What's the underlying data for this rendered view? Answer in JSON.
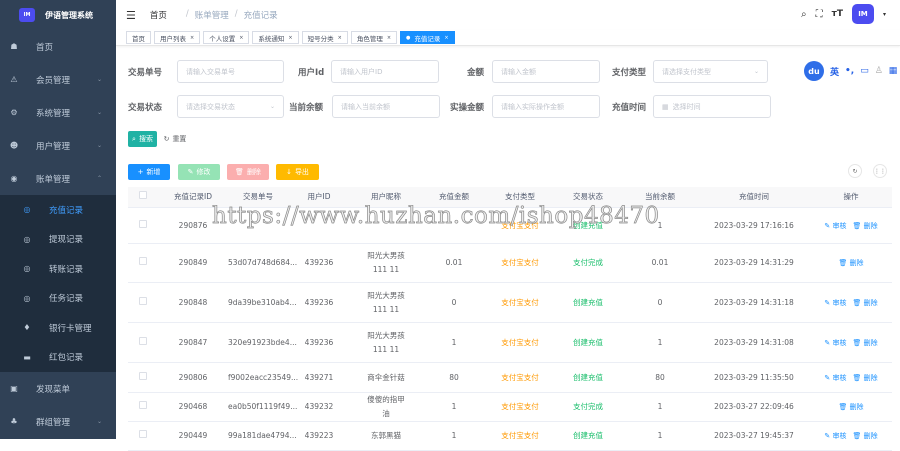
{
  "app": {
    "title": "伊语管理系统",
    "logo_text": "IM"
  },
  "sidebar": {
    "items": [
      {
        "label": "首页",
        "icon": "dashboard-icon"
      },
      {
        "label": "会员管理",
        "icon": "warning-icon"
      },
      {
        "label": "系统管理",
        "icon": "gear-icon"
      },
      {
        "label": "用户管理",
        "icon": "user-icon"
      },
      {
        "label": "账单管理",
        "icon": "bill-icon"
      }
    ],
    "sub_items": [
      {
        "label": "充值记录",
        "icon": "circle-icon",
        "active": true
      },
      {
        "label": "提现记录",
        "icon": "circle-icon"
      },
      {
        "label": "转账记录",
        "icon": "circle-icon"
      },
      {
        "label": "任务记录",
        "icon": "circle-icon"
      },
      {
        "label": "银行卡管理",
        "icon": "diamond-icon"
      },
      {
        "label": "红包记录",
        "icon": "envelope-icon"
      }
    ],
    "bottom_items": [
      {
        "label": "发现菜单",
        "icon": "grid-icon"
      },
      {
        "label": "群组管理",
        "icon": "group-icon"
      }
    ]
  },
  "header": {
    "breadcrumb": [
      "首页",
      "账单管理",
      "充值记录"
    ],
    "separator": "/",
    "avatar_text": "IM"
  },
  "tags": [
    {
      "label": "首页"
    },
    {
      "label": "用户列表"
    },
    {
      "label": "个人设置"
    },
    {
      "label": "系统通知"
    },
    {
      "label": "短号分类"
    },
    {
      "label": "角色管理"
    },
    {
      "label": "充值记录",
      "active": true
    }
  ],
  "filters": {
    "trade_no": {
      "label": "交易单号",
      "placeholder": "请输入交易单号"
    },
    "user_id": {
      "label": "用户Id",
      "placeholder": "请输入用户ID"
    },
    "amount": {
      "label": "金额",
      "placeholder": "请输入金额"
    },
    "pay_type": {
      "label": "支付类型",
      "placeholder": "请选择支付类型"
    },
    "trade_status": {
      "label": "交易状态",
      "placeholder": "请选择交易状态"
    },
    "balance": {
      "label": "当前余额",
      "placeholder": "请输入当前余额"
    },
    "real_amount": {
      "label": "实操金额",
      "placeholder": "请输入实际操作金额"
    },
    "time": {
      "label": "充值时间",
      "placeholder": "选择时间"
    },
    "search_label": "搜索",
    "reset_label": "重置"
  },
  "ime_bar": {
    "logo": "du",
    "lang": "英"
  },
  "toolbar": {
    "add": "新增",
    "edit": "修改",
    "delete": "删除",
    "export": "导出"
  },
  "table": {
    "columns": [
      "充值记录ID",
      "交易单号",
      "用户ID",
      "用户昵称",
      "充值金额",
      "支付类型",
      "交易状态",
      "当前余额",
      "充值时间",
      "操作"
    ],
    "rows": [
      {
        "id": "290876",
        "trade_no": "",
        "user_id": "",
        "nickname": "",
        "amount": "",
        "pay_type": "支付宝支付",
        "status": "创建充值",
        "balance": "1",
        "time": "2023-03-29 17:16:16",
        "ops": [
          "审核",
          "删除"
        ]
      },
      {
        "id": "290849",
        "trade_no": "53d07d748d684...",
        "user_id": "439236",
        "nickname": "阳光大男孩111 11",
        "amount": "0.01",
        "pay_type": "支付宝支付",
        "status": "支付完成",
        "balance": "0.01",
        "time": "2023-03-29 14:31:29",
        "ops": [
          "删除"
        ]
      },
      {
        "id": "290848",
        "trade_no": "9da39be310ab4...",
        "user_id": "439236",
        "nickname": "阳光大男孩111 11",
        "amount": "0",
        "pay_type": "支付宝支付",
        "status": "创建充值",
        "balance": "0",
        "time": "2023-03-29 14:31:18",
        "ops": [
          "审核",
          "删除"
        ]
      },
      {
        "id": "290847",
        "trade_no": "320e91923bde4...",
        "user_id": "439236",
        "nickname": "阳光大男孩111 11",
        "amount": "1",
        "pay_type": "支付宝支付",
        "status": "创建充值",
        "balance": "1",
        "time": "2023-03-29 14:31:08",
        "ops": [
          "审核",
          "删除"
        ]
      },
      {
        "id": "290806",
        "trade_no": "f9002eacc23549...",
        "user_id": "439271",
        "nickname": "商伞金针菇",
        "amount": "80",
        "pay_type": "支付宝支付",
        "status": "创建充值",
        "balance": "80",
        "time": "2023-03-29 11:35:50",
        "ops": [
          "审核",
          "删除"
        ]
      },
      {
        "id": "290468",
        "trade_no": "ea0b50f1119f49...",
        "user_id": "439232",
        "nickname": "傻傻的指甲油",
        "amount": "1",
        "pay_type": "支付宝支付",
        "status": "支付完成",
        "balance": "1",
        "time": "2023-03-27 22:09:46",
        "ops": [
          "删除"
        ]
      },
      {
        "id": "290449",
        "trade_no": "99a181dae4794...",
        "user_id": "439223",
        "nickname": "东郭黑猫",
        "amount": "1",
        "pay_type": "支付宝支付",
        "status": "创建充值",
        "balance": "1",
        "time": "2023-03-27 19:45:37",
        "ops": [
          "审核",
          "删除"
        ]
      }
    ]
  },
  "watermark": "https://www.huzhan.com/ishop48470",
  "colors": {
    "sidebar": "#304156",
    "primary": "#1890ff",
    "success": "#19be6b",
    "warning": "#ff9900",
    "search": "#13ce66"
  }
}
